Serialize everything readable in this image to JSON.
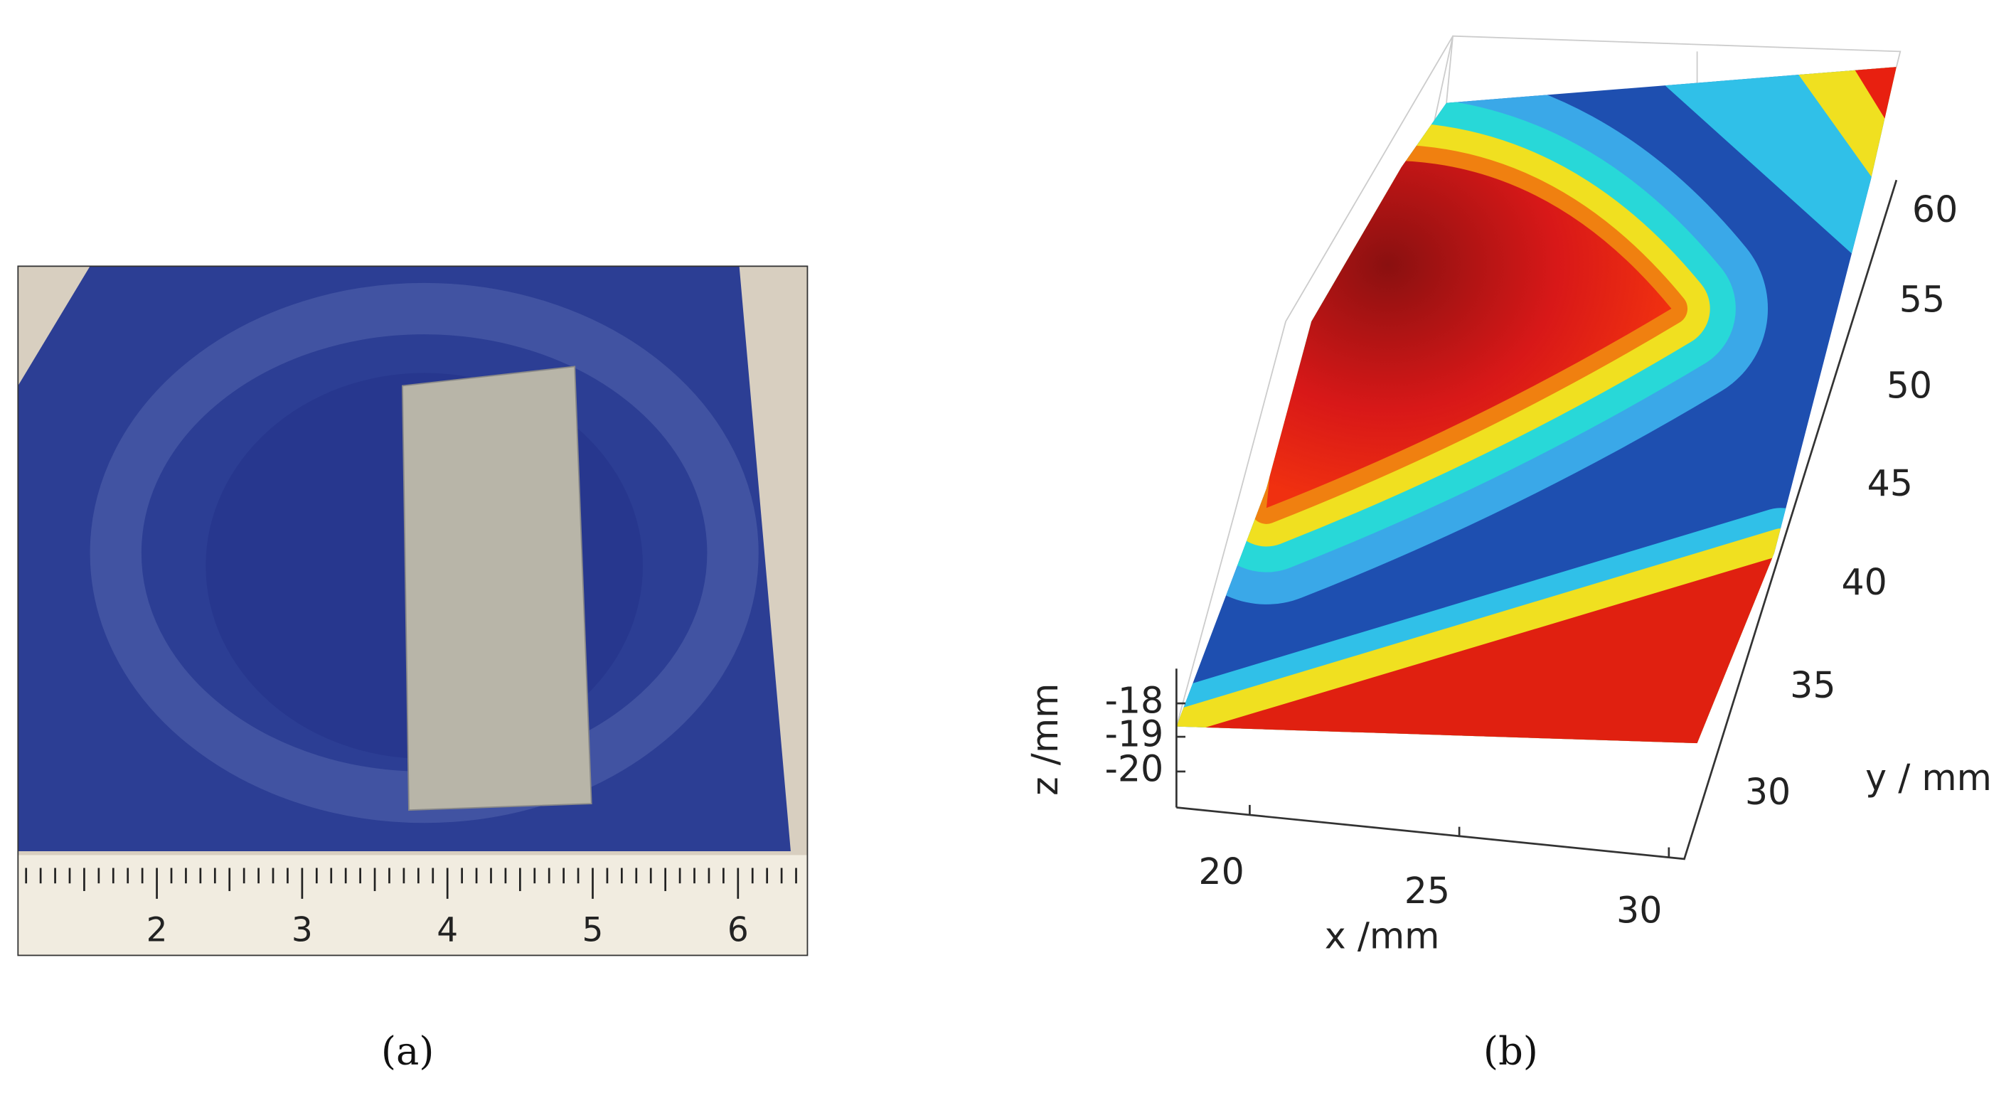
{
  "panel_a": {
    "ruler_labels": [
      "2",
      "3",
      "4",
      "5",
      "6"
    ],
    "caption": "(a)"
  },
  "panel_b": {
    "x_label": "x /mm",
    "y_label": "y / mm",
    "z_label": "z /mm",
    "xticks": [
      "20",
      "25",
      "30"
    ],
    "yticks": [
      "30",
      "35",
      "40",
      "45",
      "50",
      "55",
      "60"
    ],
    "zticks": [
      "-18",
      "-19",
      "-20"
    ],
    "caption": "(b)"
  }
}
